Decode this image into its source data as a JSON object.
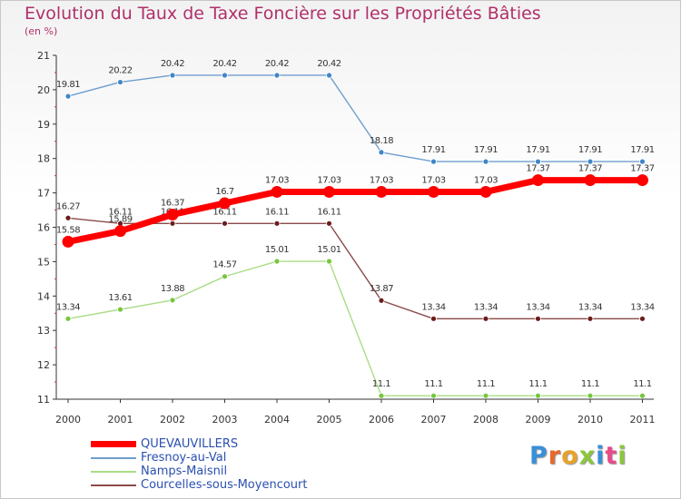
{
  "title": "Evolution du Taux de Taxe Foncière sur les Propriétés Bâties",
  "subtitle": "(en %)",
  "logo_text": "Proxiti",
  "chart_data": {
    "type": "line",
    "title": "Evolution du Taux de Taxe Foncière sur les Propriétés Bâties",
    "ylabel": "(en %)",
    "xlabel": "",
    "x": [
      "2000",
      "2001",
      "2002",
      "2003",
      "2004",
      "2005",
      "2006",
      "2007",
      "2008",
      "2009",
      "2010",
      "2011"
    ],
    "yticks": [
      11,
      12,
      13,
      14,
      15,
      16,
      17,
      18,
      19,
      20,
      21
    ],
    "ylim": [
      11,
      21
    ],
    "legend_position": "bottom-left",
    "grid": false,
    "series": [
      {
        "name": "Fresnoy-au-Val",
        "color": "#6f9ed0",
        "marker": "#3f86c8",
        "values": [
          19.81,
          20.22,
          20.42,
          20.42,
          20.42,
          20.42,
          18.18,
          17.91,
          17.91,
          17.91,
          17.91,
          17.91
        ],
        "labels": [
          "19.81",
          "20.22",
          "20.42",
          "20.42",
          "20.42",
          "20.42",
          "18.18",
          "17.91",
          "17.91",
          "17.91",
          "17.91",
          "17.91"
        ]
      },
      {
        "name": "Namps-Maisnil",
        "color": "#a9dd85",
        "marker": "#77c63c",
        "values": [
          13.34,
          13.61,
          13.88,
          14.57,
          15.01,
          15.01,
          11.1,
          11.1,
          11.1,
          11.1,
          11.1,
          11.1
        ],
        "labels": [
          "13.34",
          "13.61",
          "13.88",
          "14.57",
          "15.01",
          "15.01",
          "11.1",
          "11.1",
          "11.1",
          "11.1",
          "11.1",
          "11.1"
        ]
      },
      {
        "name": "Courcelles-sous-Moyencourt",
        "color": "#8a4a4a",
        "marker": "#6b1c1c",
        "values": [
          16.27,
          16.11,
          16.11,
          16.11,
          16.11,
          16.11,
          13.87,
          13.34,
          13.34,
          13.34,
          13.34,
          13.34
        ],
        "labels": [
          "16.27",
          "16.11",
          "16.11",
          "16.11",
          "16.11",
          "16.11",
          "13.87",
          "13.34",
          "13.34",
          "13.34",
          "13.34",
          "13.34"
        ]
      },
      {
        "name": "QUEVAUVILLERS",
        "color": "#ff0000",
        "marker": "#ff0000",
        "values": [
          15.58,
          15.89,
          16.37,
          16.7,
          17.03,
          17.03,
          17.03,
          17.03,
          17.03,
          17.37,
          17.37,
          17.37
        ],
        "labels": [
          "15.58",
          "15.89",
          "16.37",
          "16.7",
          "17.03",
          "17.03",
          "17.03",
          "17.03",
          "17.03",
          "17.37",
          "17.37",
          "17.37"
        ]
      }
    ],
    "legend_order": [
      "QUEVAUVILLERS",
      "Fresnoy-au-Val",
      "Namps-Maisnil",
      "Courcelles-sous-Moyencourt"
    ]
  }
}
